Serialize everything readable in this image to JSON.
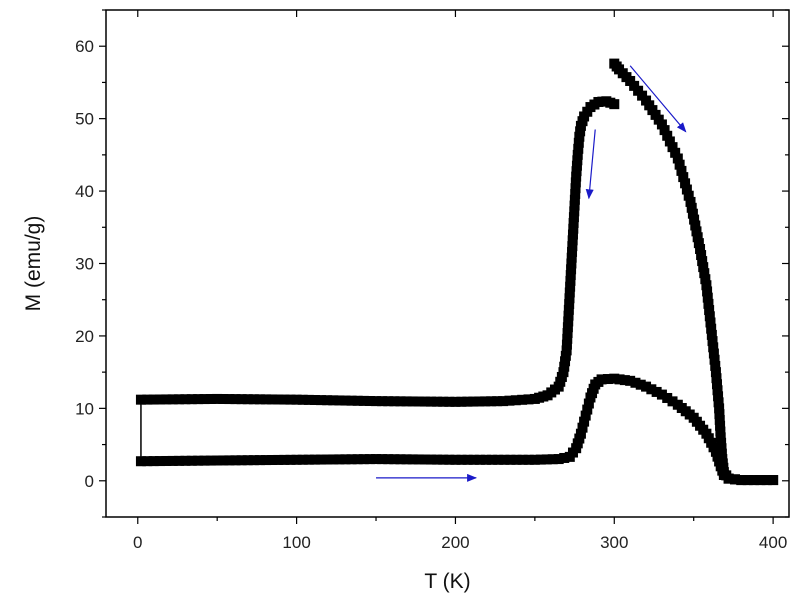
{
  "chart_data": {
    "type": "scatter",
    "title": "",
    "xlabel": "T (K)",
    "ylabel": "M (emu/g)",
    "xlim": [
      -20,
      410
    ],
    "ylim": [
      -5,
      65
    ],
    "xticks": [
      0,
      100,
      200,
      300,
      400
    ],
    "yticks": [
      0,
      10,
      20,
      30,
      40,
      50,
      60
    ],
    "grid": false,
    "legend": "none",
    "marker": "square",
    "colors": {
      "data": "#000000",
      "arrow": "#1a1ac8",
      "axis": "#000000"
    },
    "series": [
      {
        "values": [
          [
            2,
            2.7
          ],
          [
            50,
            2.8
          ],
          [
            100,
            2.9
          ],
          [
            150,
            3.0
          ],
          [
            200,
            2.9
          ],
          [
            250,
            2.9
          ],
          [
            265,
            3.0
          ],
          [
            272,
            3.3
          ],
          [
            276,
            4.5
          ],
          [
            279,
            6.5
          ],
          [
            282,
            9.0
          ],
          [
            285,
            11.5
          ],
          [
            288,
            13.3
          ],
          [
            292,
            14.0
          ],
          [
            300,
            14.1
          ],
          [
            310,
            13.8
          ],
          [
            320,
            13.0
          ],
          [
            330,
            11.9
          ],
          [
            340,
            10.5
          ],
          [
            350,
            8.7
          ],
          [
            358,
            6.5
          ],
          [
            364,
            4.0
          ],
          [
            367,
            2.0
          ],
          [
            369,
            0.8
          ],
          [
            372,
            0.3
          ],
          [
            380,
            0.1
          ],
          [
            400,
            0.1
          ]
        ]
      },
      {
        "values": [
          [
            300,
            57.6
          ],
          [
            303,
            56.8
          ],
          [
            310,
            55.2
          ],
          [
            320,
            52.5
          ],
          [
            330,
            49.2
          ],
          [
            340,
            44.5
          ],
          [
            348,
            38.5
          ],
          [
            354,
            32.0
          ],
          [
            358,
            27.0
          ],
          [
            361,
            21.0
          ],
          [
            364,
            15.0
          ],
          [
            366,
            10.0
          ],
          [
            367,
            6.0
          ],
          [
            368,
            3.0
          ],
          [
            369,
            1.2
          ],
          [
            372,
            0.3
          ],
          [
            380,
            0.1
          ],
          [
            400,
            0.1
          ]
        ]
      },
      {
        "values": [
          [
            300,
            52.0
          ],
          [
            295,
            52.4
          ],
          [
            290,
            52.3
          ],
          [
            285,
            51.6
          ],
          [
            281,
            50.3
          ],
          [
            279,
            49.0
          ],
          [
            278,
            47.5
          ],
          [
            277,
            45.0
          ],
          [
            276,
            42.0
          ],
          [
            275,
            38.0
          ],
          [
            274,
            34.0
          ],
          [
            273,
            30.0
          ],
          [
            272,
            26.0
          ],
          [
            271,
            22.0
          ],
          [
            270,
            18.0
          ],
          [
            268,
            15.0
          ],
          [
            265,
            13.0
          ],
          [
            258,
            11.8
          ],
          [
            250,
            11.3
          ],
          [
            230,
            11.0
          ],
          [
            200,
            10.9
          ],
          [
            150,
            11.0
          ],
          [
            100,
            11.2
          ],
          [
            50,
            11.3
          ],
          [
            2,
            11.2
          ]
        ]
      }
    ],
    "connector": [
      [
        2,
        11.2
      ],
      [
        2,
        2.7
      ]
    ],
    "annotations": [
      {
        "kind": "arrow",
        "from": [
          150,
          0.4
        ],
        "to": [
          213,
          0.4
        ]
      },
      {
        "kind": "arrow",
        "from": [
          288,
          48.5
        ],
        "to": [
          284,
          39.0
        ]
      },
      {
        "kind": "arrow",
        "from": [
          310,
          57.3
        ],
        "to": [
          345,
          48.2
        ]
      }
    ]
  }
}
